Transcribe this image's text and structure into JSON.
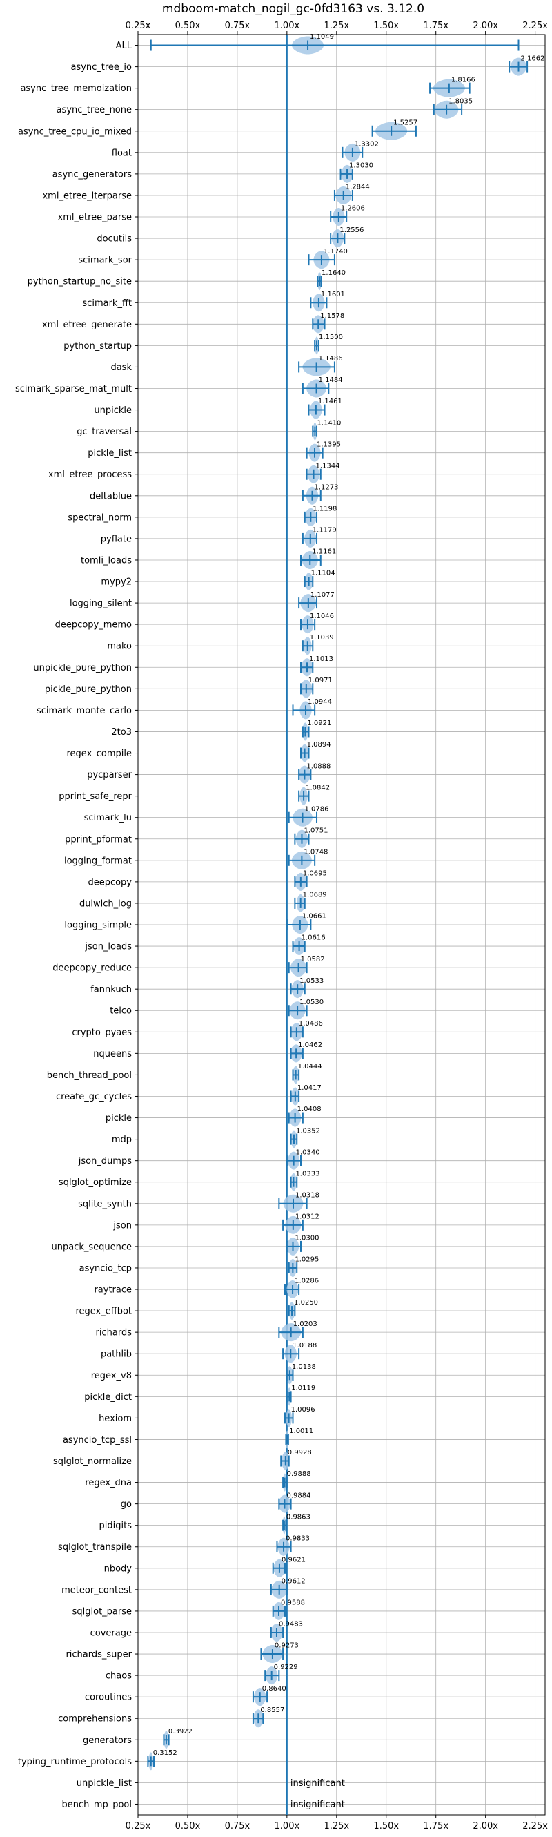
{
  "chart_data": {
    "type": "violin-errorbar",
    "title": "mdboom-match_nogil_gc-0fd3163 vs. 3.12.0",
    "xlabel": "",
    "ylabel": "",
    "xlim": [
      0.25,
      2.3
    ],
    "xticks": [
      0.25,
      0.5,
      0.75,
      1.0,
      1.25,
      1.5,
      1.75,
      2.0,
      2.25
    ],
    "xtick_labels": [
      "0.25x",
      "0.50x",
      "0.75x",
      "1.00x",
      "1.25x",
      "1.50x",
      "1.75x",
      "2.00x",
      "2.25x"
    ],
    "reference_line": 1.0,
    "grid": true,
    "insignificant_label": "insignificant",
    "benchmarks": [
      {
        "name": "ALL",
        "value": 1.1049,
        "label": "1.1049",
        "lo": 0.3152,
        "hi": 2.1662,
        "spread": 0.08
      },
      {
        "name": "async_tree_io",
        "value": 2.1662,
        "label": "2.1662",
        "lo": 2.12,
        "hi": 2.21,
        "spread": 0.04
      },
      {
        "name": "async_tree_memoization",
        "value": 1.8166,
        "label": "1.8166",
        "lo": 1.72,
        "hi": 1.92,
        "spread": 0.08
      },
      {
        "name": "async_tree_none",
        "value": 1.8035,
        "label": "1.8035",
        "lo": 1.74,
        "hi": 1.88,
        "spread": 0.06
      },
      {
        "name": "async_tree_cpu_io_mixed",
        "value": 1.5257,
        "label": "1.5257",
        "lo": 1.43,
        "hi": 1.65,
        "spread": 0.08
      },
      {
        "name": "float",
        "value": 1.3302,
        "label": "1.3302",
        "lo": 1.28,
        "hi": 1.38,
        "spread": 0.04
      },
      {
        "name": "async_generators",
        "value": 1.303,
        "label": "1.3030",
        "lo": 1.27,
        "hi": 1.33,
        "spread": 0.03
      },
      {
        "name": "xml_etree_iterparse",
        "value": 1.2844,
        "label": "1.2844",
        "lo": 1.24,
        "hi": 1.33,
        "spread": 0.04
      },
      {
        "name": "xml_etree_parse",
        "value": 1.2606,
        "label": "1.2606",
        "lo": 1.22,
        "hi": 1.3,
        "spread": 0.03
      },
      {
        "name": "docutils",
        "value": 1.2556,
        "label": "1.2556",
        "lo": 1.22,
        "hi": 1.29,
        "spread": 0.03
      },
      {
        "name": "scimark_sor",
        "value": 1.174,
        "label": "1.1740",
        "lo": 1.11,
        "hi": 1.24,
        "spread": 0.04
      },
      {
        "name": "python_startup_no_site",
        "value": 1.164,
        "label": "1.1640",
        "lo": 1.155,
        "hi": 1.172,
        "spread": 0.01
      },
      {
        "name": "scimark_fft",
        "value": 1.1601,
        "label": "1.1601",
        "lo": 1.12,
        "hi": 1.2,
        "spread": 0.03
      },
      {
        "name": "xml_etree_generate",
        "value": 1.1578,
        "label": "1.1578",
        "lo": 1.13,
        "hi": 1.19,
        "spread": 0.03
      },
      {
        "name": "python_startup",
        "value": 1.15,
        "label": "1.1500",
        "lo": 1.14,
        "hi": 1.16,
        "spread": 0.01
      },
      {
        "name": "dask",
        "value": 1.1486,
        "label": "1.1486",
        "lo": 1.06,
        "hi": 1.24,
        "spread": 0.07
      },
      {
        "name": "scimark_sparse_mat_mult",
        "value": 1.1484,
        "label": "1.1484",
        "lo": 1.08,
        "hi": 1.21,
        "spread": 0.05
      },
      {
        "name": "unpickle",
        "value": 1.1461,
        "label": "1.1461",
        "lo": 1.11,
        "hi": 1.19,
        "spread": 0.03
      },
      {
        "name": "gc_traversal",
        "value": 1.141,
        "label": "1.1410",
        "lo": 1.13,
        "hi": 1.15,
        "spread": 0.01
      },
      {
        "name": "pickle_list",
        "value": 1.1395,
        "label": "1.1395",
        "lo": 1.1,
        "hi": 1.18,
        "spread": 0.03
      },
      {
        "name": "xml_etree_process",
        "value": 1.1344,
        "label": "1.1344",
        "lo": 1.1,
        "hi": 1.17,
        "spread": 0.03
      },
      {
        "name": "deltablue",
        "value": 1.1273,
        "label": "1.1273",
        "lo": 1.08,
        "hi": 1.17,
        "spread": 0.03
      },
      {
        "name": "spectral_norm",
        "value": 1.1198,
        "label": "1.1198",
        "lo": 1.09,
        "hi": 1.15,
        "spread": 0.03
      },
      {
        "name": "pyflate",
        "value": 1.1179,
        "label": "1.1179",
        "lo": 1.08,
        "hi": 1.15,
        "spread": 0.03
      },
      {
        "name": "tomli_loads",
        "value": 1.1161,
        "label": "1.1161",
        "lo": 1.07,
        "hi": 1.17,
        "spread": 0.04
      },
      {
        "name": "mypy2",
        "value": 1.1104,
        "label": "1.1104",
        "lo": 1.09,
        "hi": 1.13,
        "spread": 0.02
      },
      {
        "name": "logging_silent",
        "value": 1.1077,
        "label": "1.1077",
        "lo": 1.06,
        "hi": 1.15,
        "spread": 0.04
      },
      {
        "name": "deepcopy_memo",
        "value": 1.1046,
        "label": "1.1046",
        "lo": 1.07,
        "hi": 1.14,
        "spread": 0.03
      },
      {
        "name": "mako",
        "value": 1.1039,
        "label": "1.1039",
        "lo": 1.08,
        "hi": 1.13,
        "spread": 0.02
      },
      {
        "name": "unpickle_pure_python",
        "value": 1.1013,
        "label": "1.1013",
        "lo": 1.07,
        "hi": 1.13,
        "spread": 0.03
      },
      {
        "name": "pickle_pure_python",
        "value": 1.0971,
        "label": "1.0971",
        "lo": 1.07,
        "hi": 1.13,
        "spread": 0.03
      },
      {
        "name": "scimark_monte_carlo",
        "value": 1.0944,
        "label": "1.0944",
        "lo": 1.03,
        "hi": 1.14,
        "spread": 0.03
      },
      {
        "name": "2to3",
        "value": 1.0921,
        "label": "1.0921",
        "lo": 1.08,
        "hi": 1.11,
        "spread": 0.015
      },
      {
        "name": "regex_compile",
        "value": 1.0894,
        "label": "1.0894",
        "lo": 1.07,
        "hi": 1.11,
        "spread": 0.02
      },
      {
        "name": "pycparser",
        "value": 1.0888,
        "label": "1.0888",
        "lo": 1.06,
        "hi": 1.12,
        "spread": 0.03
      },
      {
        "name": "pprint_safe_repr",
        "value": 1.0842,
        "label": "1.0842",
        "lo": 1.06,
        "hi": 1.11,
        "spread": 0.02
      },
      {
        "name": "scimark_lu",
        "value": 1.0786,
        "label": "1.0786",
        "lo": 1.01,
        "hi": 1.15,
        "spread": 0.05
      },
      {
        "name": "pprint_pformat",
        "value": 1.0751,
        "label": "1.0751",
        "lo": 1.04,
        "hi": 1.11,
        "spread": 0.03
      },
      {
        "name": "logging_format",
        "value": 1.0748,
        "label": "1.0748",
        "lo": 1.01,
        "hi": 1.14,
        "spread": 0.05
      },
      {
        "name": "deepcopy",
        "value": 1.0695,
        "label": "1.0695",
        "lo": 1.04,
        "hi": 1.1,
        "spread": 0.03
      },
      {
        "name": "dulwich_log",
        "value": 1.0689,
        "label": "1.0689",
        "lo": 1.04,
        "hi": 1.09,
        "spread": 0.02
      },
      {
        "name": "logging_simple",
        "value": 1.0661,
        "label": "1.0661",
        "lo": 1.0,
        "hi": 1.12,
        "spread": 0.04
      },
      {
        "name": "json_loads",
        "value": 1.0616,
        "label": "1.0616",
        "lo": 1.03,
        "hi": 1.09,
        "spread": 0.03
      },
      {
        "name": "deepcopy_reduce",
        "value": 1.0582,
        "label": "1.0582",
        "lo": 1.01,
        "hi": 1.1,
        "spread": 0.04
      },
      {
        "name": "fannkuch",
        "value": 1.0533,
        "label": "1.0533",
        "lo": 1.02,
        "hi": 1.09,
        "spread": 0.03
      },
      {
        "name": "telco",
        "value": 1.053,
        "label": "1.0530",
        "lo": 1.01,
        "hi": 1.1,
        "spread": 0.04
      },
      {
        "name": "crypto_pyaes",
        "value": 1.0486,
        "label": "1.0486",
        "lo": 1.02,
        "hi": 1.08,
        "spread": 0.03
      },
      {
        "name": "nqueens",
        "value": 1.0462,
        "label": "1.0462",
        "lo": 1.02,
        "hi": 1.08,
        "spread": 0.03
      },
      {
        "name": "bench_thread_pool",
        "value": 1.0444,
        "label": "1.0444",
        "lo": 1.03,
        "hi": 1.06,
        "spread": 0.015
      },
      {
        "name": "create_gc_cycles",
        "value": 1.0417,
        "label": "1.0417",
        "lo": 1.02,
        "hi": 1.06,
        "spread": 0.02
      },
      {
        "name": "pickle",
        "value": 1.0408,
        "label": "1.0408",
        "lo": 1.01,
        "hi": 1.08,
        "spread": 0.03
      },
      {
        "name": "mdp",
        "value": 1.0352,
        "label": "1.0352",
        "lo": 1.02,
        "hi": 1.05,
        "spread": 0.015
      },
      {
        "name": "json_dumps",
        "value": 1.034,
        "label": "1.0340",
        "lo": 1.0,
        "hi": 1.07,
        "spread": 0.03
      },
      {
        "name": "sqlglot_optimize",
        "value": 1.0333,
        "label": "1.0333",
        "lo": 1.02,
        "hi": 1.05,
        "spread": 0.015
      },
      {
        "name": "sqlite_synth",
        "value": 1.0318,
        "label": "1.0318",
        "lo": 0.96,
        "hi": 1.1,
        "spread": 0.05
      },
      {
        "name": "json",
        "value": 1.0312,
        "label": "1.0312",
        "lo": 0.98,
        "hi": 1.08,
        "spread": 0.04
      },
      {
        "name": "unpack_sequence",
        "value": 1.03,
        "label": "1.0300",
        "lo": 1.0,
        "hi": 1.07,
        "spread": 0.03
      },
      {
        "name": "asyncio_tcp",
        "value": 1.0295,
        "label": "1.0295",
        "lo": 1.01,
        "hi": 1.05,
        "spread": 0.02
      },
      {
        "name": "raytrace",
        "value": 1.0286,
        "label": "1.0286",
        "lo": 0.99,
        "hi": 1.06,
        "spread": 0.03
      },
      {
        "name": "regex_effbot",
        "value": 1.025,
        "label": "1.0250",
        "lo": 1.01,
        "hi": 1.04,
        "spread": 0.015
      },
      {
        "name": "richards",
        "value": 1.0203,
        "label": "1.0203",
        "lo": 0.96,
        "hi": 1.08,
        "spread": 0.05
      },
      {
        "name": "pathlib",
        "value": 1.0188,
        "label": "1.0188",
        "lo": 0.98,
        "hi": 1.06,
        "spread": 0.03
      },
      {
        "name": "regex_v8",
        "value": 1.0138,
        "label": "1.0138",
        "lo": 1.0,
        "hi": 1.03,
        "spread": 0.015
      },
      {
        "name": "pickle_dict",
        "value": 1.0119,
        "label": "1.0119",
        "lo": 1.0,
        "hi": 1.02,
        "spread": 0.01
      },
      {
        "name": "hexiom",
        "value": 1.0096,
        "label": "1.0096",
        "lo": 0.99,
        "hi": 1.03,
        "spread": 0.015
      },
      {
        "name": "asyncio_tcp_ssl",
        "value": 1.0011,
        "label": "1.0011",
        "lo": 0.995,
        "hi": 1.007,
        "spread": 0.008
      },
      {
        "name": "sqlglot_normalize",
        "value": 0.9928,
        "label": "0.9928",
        "lo": 0.97,
        "hi": 1.01,
        "spread": 0.02
      },
      {
        "name": "regex_dna",
        "value": 0.9888,
        "label": "0.9888",
        "lo": 0.98,
        "hi": 1.0,
        "spread": 0.01
      },
      {
        "name": "go",
        "value": 0.9884,
        "label": "0.9884",
        "lo": 0.96,
        "hi": 1.02,
        "spread": 0.03
      },
      {
        "name": "pidigits",
        "value": 0.9863,
        "label": "0.9863",
        "lo": 0.98,
        "hi": 0.995,
        "spread": 0.008
      },
      {
        "name": "sqlglot_transpile",
        "value": 0.9833,
        "label": "0.9833",
        "lo": 0.95,
        "hi": 1.02,
        "spread": 0.03
      },
      {
        "name": "nbody",
        "value": 0.9621,
        "label": "0.9621",
        "lo": 0.93,
        "hi": 0.99,
        "spread": 0.03
      },
      {
        "name": "meteor_contest",
        "value": 0.9612,
        "label": "0.9612",
        "lo": 0.92,
        "hi": 1.0,
        "spread": 0.04
      },
      {
        "name": "sqlglot_parse",
        "value": 0.9588,
        "label": "0.9588",
        "lo": 0.93,
        "hi": 0.99,
        "spread": 0.03
      },
      {
        "name": "coverage",
        "value": 0.9483,
        "label": "0.9483",
        "lo": 0.92,
        "hi": 0.98,
        "spread": 0.03
      },
      {
        "name": "richards_super",
        "value": 0.9273,
        "label": "0.9273",
        "lo": 0.87,
        "hi": 0.98,
        "spread": 0.05
      },
      {
        "name": "chaos",
        "value": 0.9229,
        "label": "0.9229",
        "lo": 0.89,
        "hi": 0.96,
        "spread": 0.03
      },
      {
        "name": "coroutines",
        "value": 0.864,
        "label": "0.8640",
        "lo": 0.83,
        "hi": 0.9,
        "spread": 0.03
      },
      {
        "name": "comprehensions",
        "value": 0.8557,
        "label": "0.8557",
        "lo": 0.83,
        "hi": 0.88,
        "spread": 0.025
      },
      {
        "name": "generators",
        "value": 0.3922,
        "label": "0.3922",
        "lo": 0.38,
        "hi": 0.405,
        "spread": 0.012
      },
      {
        "name": "typing_runtime_protocols",
        "value": 0.3152,
        "label": "0.3152",
        "lo": 0.3,
        "hi": 0.33,
        "spread": 0.012
      },
      {
        "name": "unpickle_list",
        "value": null,
        "label": "insignificant"
      },
      {
        "name": "bench_mp_pool",
        "value": null,
        "label": "insignificant"
      }
    ]
  },
  "colors": {
    "accent": "#1f77b4",
    "violin": "#a6c8e6",
    "grid": "#b0b0b0",
    "text": "#000000"
  }
}
